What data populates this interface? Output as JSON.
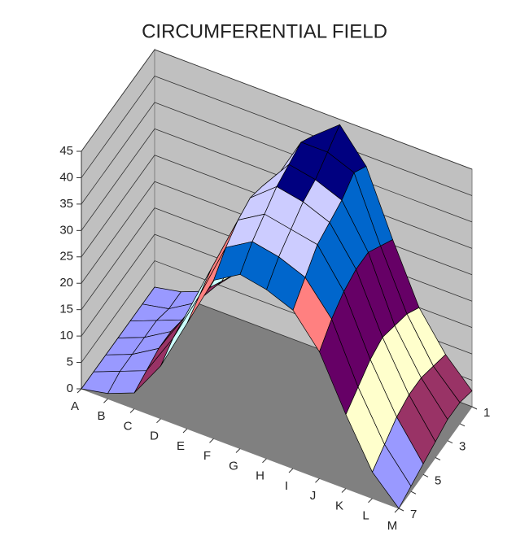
{
  "chart_data": {
    "type": "surface",
    "title": "CIRCUMFERENTIAL FIELD",
    "categories": [
      "A",
      "B",
      "C",
      "D",
      "E",
      "F",
      "G",
      "H",
      "I",
      "J",
      "K",
      "L",
      "M"
    ],
    "depth_categories": [
      "1",
      null,
      "3",
      null,
      "5",
      null,
      "7"
    ],
    "z": [
      [
        0,
        1,
        3,
        8,
        18,
        30,
        40,
        44,
        38,
        26,
        15,
        8,
        3
      ],
      [
        0,
        1,
        4,
        10,
        20,
        33,
        42,
        42,
        40,
        28,
        17,
        9,
        4
      ],
      [
        0,
        2,
        4,
        12,
        22,
        35,
        41,
        40,
        38,
        30,
        18,
        10,
        4
      ],
      [
        0,
        2,
        5,
        12,
        24,
        36,
        40,
        39,
        37,
        30,
        19,
        10,
        3
      ],
      [
        0,
        2,
        5,
        13,
        24,
        35,
        38,
        37,
        36,
        29,
        18,
        9,
        2
      ],
      [
        0,
        2,
        4,
        12,
        22,
        33,
        36,
        35,
        33,
        27,
        16,
        7,
        1
      ],
      [
        0,
        1,
        3,
        10,
        20,
        30,
        33,
        32,
        30,
        24,
        14,
        5,
        0
      ]
    ],
    "zlim": [
      0,
      45
    ],
    "zticks": [
      0,
      5,
      10,
      15,
      20,
      25,
      30,
      35,
      40,
      45
    ],
    "band_colors": [
      "#9999ff",
      "#993366",
      "#ffffcc",
      "#ccffff",
      "#660066",
      "#ff8080",
      "#0066cc",
      "#ccccff",
      "#000080"
    ],
    "grid": true
  }
}
